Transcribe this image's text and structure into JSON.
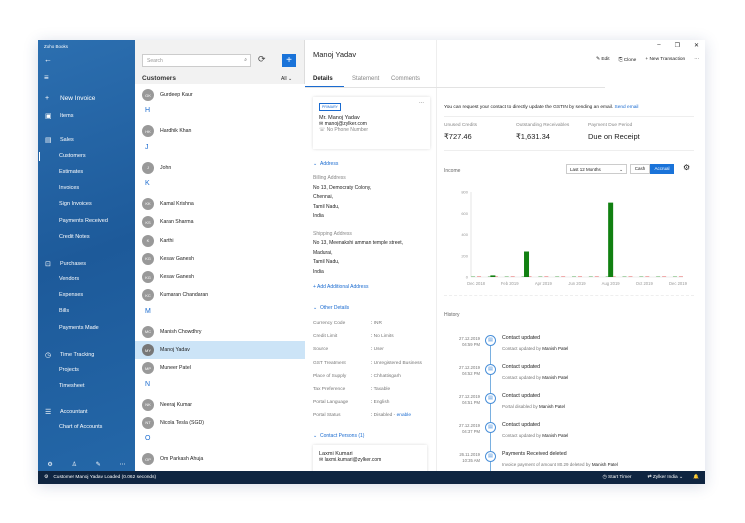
{
  "app": {
    "title": "Zoho Books"
  },
  "sidebar": {
    "items": [
      {
        "label": "New Invoice",
        "icon": "plus-icon",
        "top": "new"
      },
      {
        "label": "Items",
        "icon": "box-icon"
      },
      {
        "label": "Sales",
        "icon": "document-icon"
      },
      {
        "label": "Customers",
        "sub": true,
        "active": true
      },
      {
        "label": "Estimates",
        "sub": true
      },
      {
        "label": "Invoices",
        "sub": true
      },
      {
        "label": "Sign Invoices",
        "sub": true
      },
      {
        "label": "Payments Received",
        "sub": true
      },
      {
        "label": "Credit Notes",
        "sub": true
      },
      {
        "label": "Purchases",
        "icon": "cart-icon"
      },
      {
        "label": "Vendors",
        "sub": true
      },
      {
        "label": "Expenses",
        "sub": true
      },
      {
        "label": "Bills",
        "sub": true
      },
      {
        "label": "Payments Made",
        "sub": true
      },
      {
        "label": "Time Tracking",
        "icon": "clock-icon"
      },
      {
        "label": "Projects",
        "sub": true
      },
      {
        "label": "Timesheet",
        "sub": true
      },
      {
        "label": "Accountant",
        "icon": "accountant-icon"
      },
      {
        "label": "Chart of Accounts",
        "sub": true
      }
    ]
  },
  "list": {
    "search_placeholder": "Search",
    "title": "Customers",
    "filter": "All",
    "rows": [
      {
        "type": "c",
        "initials": "GK",
        "name": "Gurdeep Kaur"
      },
      {
        "type": "l",
        "name": "H"
      },
      {
        "type": "c",
        "initials": "HK",
        "name": "Hardhik Khan"
      },
      {
        "type": "l",
        "name": "J"
      },
      {
        "type": "c",
        "initials": "J",
        "name": "John"
      },
      {
        "type": "l",
        "name": "K"
      },
      {
        "type": "c",
        "initials": "KK",
        "name": "Kamal Krishna"
      },
      {
        "type": "c",
        "initials": "KS",
        "name": "Karan Sharma"
      },
      {
        "type": "c",
        "initials": "K",
        "name": "Karthi"
      },
      {
        "type": "c",
        "initials": "KG",
        "name": "Kesav Ganesh"
      },
      {
        "type": "c",
        "initials": "KG",
        "name": "Kesav Ganesh"
      },
      {
        "type": "c",
        "initials": "KC",
        "name": "Kumaran Chandaran"
      },
      {
        "type": "l",
        "name": "M"
      },
      {
        "type": "c",
        "initials": "MC",
        "name": "Manish Chowdhry"
      },
      {
        "type": "c",
        "initials": "MY",
        "name": "Manoj Yadav",
        "selected": true
      },
      {
        "type": "c",
        "initials": "MP",
        "name": "Muneer Patel"
      },
      {
        "type": "l",
        "name": "N"
      },
      {
        "type": "c",
        "initials": "NK",
        "name": "Neeraj Kumar"
      },
      {
        "type": "c",
        "initials": "NT",
        "name": "Nicola Tesla (SGD)"
      },
      {
        "type": "l",
        "name": "O"
      },
      {
        "type": "c",
        "initials": "OP",
        "name": "Om Parkash Ahuja"
      }
    ]
  },
  "header": {
    "title": "Manoj Yadav",
    "tabs": [
      "Details",
      "Statement",
      "Comments"
    ],
    "edit": "Edit",
    "clone": "Clone",
    "new_transaction": "New Transaction"
  },
  "contact": {
    "badge": "PRIMARY",
    "name": "Mr. Manoj Yadav",
    "email": "manoj@zylker.com",
    "phone": "No Phone Number"
  },
  "address": {
    "section": "Address",
    "billing_label": "Billing Address",
    "billing": [
      "No 13, Democraty Colony,",
      "Chennai,",
      "Tamil Nadu,",
      "India"
    ],
    "shipping_label": "Shipping Address",
    "shipping": [
      "No 13, Meenakshi amman temple street,",
      "Madurai,",
      "Tamil Nadu,",
      "India"
    ],
    "add": "+ Add Additional Address"
  },
  "other": {
    "section": "Other Details",
    "fields": [
      {
        "k": "Currency Code",
        "v": "INR"
      },
      {
        "k": "Credit Limit",
        "v": "No Limits"
      },
      {
        "k": "Source",
        "v": "User"
      },
      {
        "k": "GST Treatment",
        "v": "Unregistered Business"
      },
      {
        "k": "Place of Supply",
        "v": "Chhattisgarh"
      },
      {
        "k": "Tax Preference",
        "v": "Taxable"
      },
      {
        "k": "Portal Language",
        "v": "English"
      },
      {
        "k": "Portal Status",
        "v": "Disabled - "
      }
    ],
    "enable": "enable"
  },
  "persons": {
    "section": "Contact Persons (1)",
    "name": "Laxmi Kumari",
    "email": "laxmi.kumari@zylker.com"
  },
  "gstin": {
    "text": "You can request your contact to directly update the GSTIN by sending an email.",
    "link": "Send email"
  },
  "stats": [
    {
      "label": "Unused Credits",
      "value": "₹727.46"
    },
    {
      "label": "Outstanding Receivables",
      "value": "₹1,631.34"
    },
    {
      "label": "Payment Due Period",
      "value": "Due on Receipt"
    }
  ],
  "income": {
    "title": "Income",
    "period": "Last 12 Months",
    "cash": "Cash",
    "accrual": "Accrual"
  },
  "chart_data": {
    "type": "bar",
    "categories": [
      "Dec 2018",
      "Jan 2019",
      "Feb 2019",
      "Mar 2019",
      "Apr 2019",
      "May 2019",
      "Jun 2019",
      "Jul 2019",
      "Aug 2019",
      "Sep 2019",
      "Oct 2019",
      "Nov 2019",
      "Dec 2019"
    ],
    "tick_labels": [
      "Dec 2018",
      "Feb 2019",
      "Apr 2019",
      "Jun 2019",
      "Aug 2019",
      "Oct 2019",
      "Dec 2019"
    ],
    "values": [
      0,
      15,
      0,
      240,
      0,
      0,
      0,
      0,
      700,
      0,
      0,
      0,
      0
    ],
    "yticks": [
      0,
      200,
      400,
      600,
      800
    ],
    "ylim": [
      0,
      800
    ],
    "color": "#118011"
  },
  "history": {
    "title": "History",
    "items": [
      {
        "date": "27.12.2019",
        "time": "04:59 PM",
        "title": "Contact updated",
        "desc": "Contact updated by ",
        "by": "Manish Patel"
      },
      {
        "date": "27.12.2019",
        "time": "04:52 PM",
        "title": "Contact updated",
        "desc": "Contact updated by ",
        "by": "Manish Patel"
      },
      {
        "date": "27.12.2019",
        "time": "04:51 PM",
        "title": "Contact updated",
        "desc": "Portal disabled by ",
        "by": "Manish Patel"
      },
      {
        "date": "27.12.2019",
        "time": "04:37 PM",
        "title": "Contact updated",
        "desc": "Contact updated by ",
        "by": "Manish Patel"
      },
      {
        "date": "26.11.2019",
        "time": "10:35 AM",
        "title": "Payments Received deleted",
        "desc": "Invoice payment of amount 80.29 deleted by ",
        "by": "Manish Patel"
      }
    ]
  },
  "status": {
    "message": "Customer Manoj Yadav Loaded (0.062 seconds)",
    "timer": "Start Timer",
    "org": "Zylker India"
  }
}
